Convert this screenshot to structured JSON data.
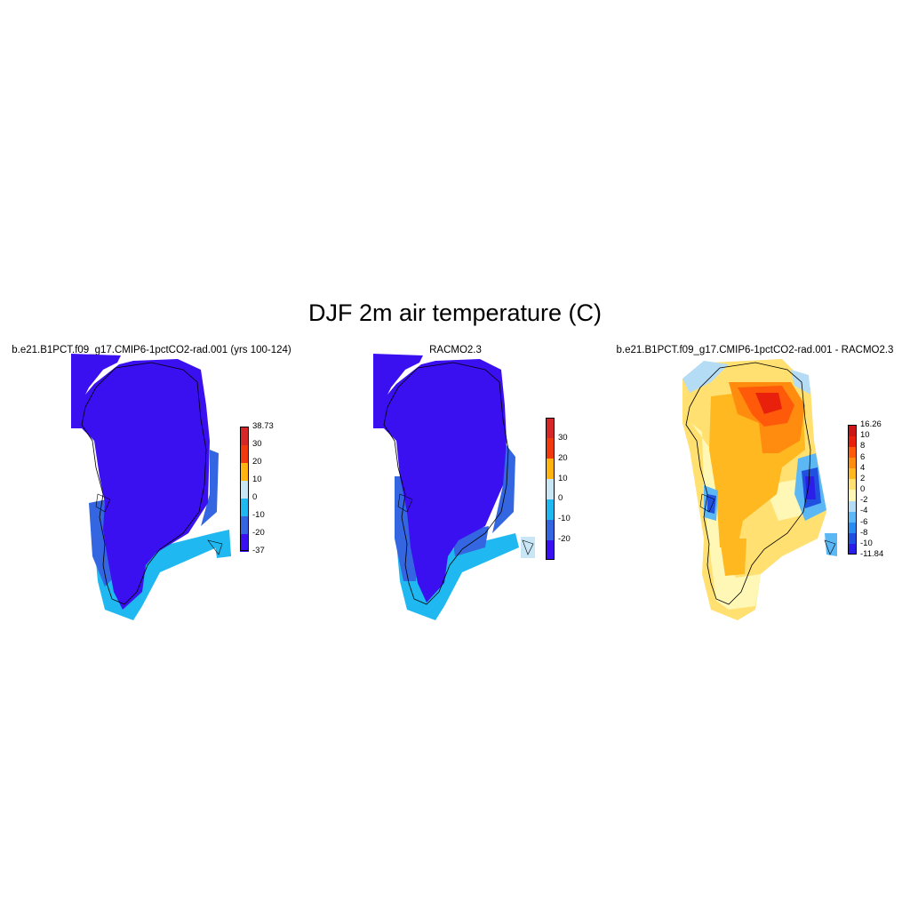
{
  "title": "DJF 2m air temperature (C)",
  "panels": [
    {
      "title": "b.e21.B1PCT.f09_g17.CMIP6-1pctCO2-rad.001 (yrs 100-124)",
      "colorbar": {
        "labels": [
          "38.73",
          "30",
          "20",
          "10",
          "0",
          "-10",
          "-20",
          "-37"
        ],
        "colors": [
          "#d62728",
          "#f03a0c",
          "#ffb40f",
          "#c8e6f5",
          "#1fb8f0",
          "#3366e0",
          "#3b10f0"
        ]
      }
    },
    {
      "title": "RACMO2.3",
      "colorbar": {
        "labels": [
          "30",
          "20",
          "10",
          "0",
          "-10",
          "-20"
        ],
        "colors": [
          "#d62728",
          "#f03a0c",
          "#ffb40f",
          "#c8e6f5",
          "#1fb8f0",
          "#3366e0",
          "#3b10f0"
        ]
      }
    },
    {
      "title": "b.e21.B1PCT.f09_g17.CMIP6-1pctCO2-rad.001 - RACMO2.3",
      "colorbar": {
        "labels": [
          "16.26",
          "10",
          "8",
          "6",
          "4",
          "2",
          "0",
          "-2",
          "-4",
          "-6",
          "-8",
          "-10",
          "-11.84"
        ],
        "colors": [
          "#cc1515",
          "#e8200c",
          "#ff5a0a",
          "#ff8c0f",
          "#ffb820",
          "#ffe070",
          "#fff7b5",
          "#b4dcf5",
          "#5bb8f5",
          "#2a8cf0",
          "#2050e0",
          "#2a1ee8"
        ]
      }
    }
  ]
}
